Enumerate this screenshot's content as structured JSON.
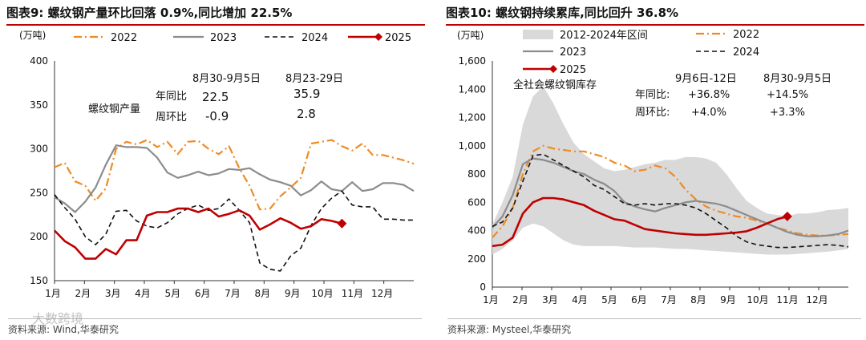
{
  "colors": {
    "s2022": "#f08a24",
    "s2023": "#8c8c8c",
    "s2024": "#111111",
    "s2025": "#c00000",
    "band": "#d9d9d9",
    "rule": "#c00000"
  },
  "left": {
    "title": "图表9:  螺纹钢产量环比回落 0.9%,同比增加 22.5%",
    "source": "资料来源: Wind,华泰研究",
    "chart_data": {
      "type": "line",
      "unit_label": "(万吨)",
      "ylim": [
        150,
        400
      ],
      "yticks": [
        "400",
        "350",
        "300",
        "250",
        "200",
        "150"
      ],
      "yvals": [
        400,
        350,
        300,
        250,
        200,
        150
      ],
      "months": [
        "1月",
        "2月",
        "3月",
        "4月",
        "5月",
        "6月",
        "7月",
        "8月",
        "9月",
        "10月",
        "11月",
        "12月"
      ],
      "legend": [
        "2022",
        "2023",
        "2024",
        "2025"
      ],
      "series": [
        {
          "name": "2022",
          "values": [
            279,
            284,
            263,
            258,
            241,
            255,
            300,
            308,
            305,
            310,
            302,
            308,
            294,
            308,
            309,
            300,
            294,
            303,
            278,
            258,
            231,
            232,
            246,
            256,
            267,
            306,
            308,
            310,
            303,
            298,
            306,
            293,
            293,
            290,
            287,
            283
          ]
        },
        {
          "name": "2023",
          "values": [
            245,
            238,
            228,
            240,
            256,
            282,
            304,
            302,
            302,
            301,
            290,
            273,
            267,
            270,
            274,
            270,
            272,
            277,
            276,
            278,
            271,
            265,
            262,
            258,
            247,
            253,
            263,
            254,
            252,
            262,
            252,
            254,
            261,
            261,
            259,
            252
          ]
        },
        {
          "name": "2024",
          "values": [
            248,
            233,
            220,
            200,
            191,
            203,
            229,
            230,
            218,
            212,
            210,
            216,
            226,
            232,
            236,
            230,
            232,
            243,
            230,
            216,
            170,
            163,
            161,
            178,
            187,
            213,
            232,
            244,
            252,
            236,
            234,
            234,
            220,
            220,
            219,
            219
          ]
        },
        {
          "name": "2025",
          "values": [
            207,
            195,
            188,
            175,
            175,
            186,
            180,
            196,
            196,
            224,
            228,
            228,
            232,
            232,
            228,
            232,
            223,
            226,
            230,
            224,
            208,
            214,
            221,
            216,
            209,
            212,
            220,
            218,
            215
          ]
        }
      ],
      "annotation": {
        "label": "螺纹钢产量",
        "col1": "8月30-9月5日",
        "col2": "8月23-29日",
        "row1_label": "年同比",
        "row2_label": "周环比",
        "yoy": [
          "22.5",
          "35.9"
        ],
        "wow": [
          "-0.9",
          "2.8"
        ]
      }
    }
  },
  "right": {
    "title": "图表10:  螺纹钢持续累库,同比回升 36.8%",
    "source": "资料来源: Mysteel,华泰研究",
    "chart_data": {
      "type": "line",
      "unit_label": "(万吨)",
      "ylim": [
        0,
        1600
      ],
      "yticks": [
        "1,600",
        "1,400",
        "1,200",
        "1,000",
        "800",
        "600",
        "400",
        "200",
        "0"
      ],
      "yvals": [
        1600,
        1400,
        1200,
        1000,
        800,
        600,
        400,
        200,
        0
      ],
      "months": [
        "1月",
        "2月",
        "3月",
        "4月",
        "5月",
        "6月",
        "7月",
        "8月",
        "9月",
        "10月",
        "11月",
        "12月"
      ],
      "legend": [
        "2012-2024年区间",
        "2022",
        "2023",
        "2024",
        "2025"
      ],
      "band_upper": [
        440,
        600,
        780,
        1150,
        1350,
        1420,
        1300,
        1150,
        1020,
        940,
        890,
        840,
        820,
        830,
        850,
        870,
        880,
        900,
        900,
        920,
        920,
        910,
        880,
        800,
        700,
        610,
        560,
        520,
        510,
        500,
        520,
        520,
        530,
        545,
        550,
        560
      ],
      "band_lower": [
        230,
        270,
        330,
        420,
        450,
        430,
        380,
        330,
        300,
        290,
        290,
        290,
        290,
        285,
        280,
        280,
        280,
        275,
        270,
        270,
        265,
        260,
        255,
        250,
        245,
        240,
        235,
        230,
        230,
        230,
        235,
        240,
        245,
        250,
        260,
        270
      ],
      "series": [
        {
          "name": "2022",
          "values": [
            350,
            430,
            560,
            800,
            960,
            1000,
            980,
            970,
            960,
            960,
            940,
            920,
            880,
            860,
            820,
            830,
            860,
            840,
            780,
            690,
            620,
            570,
            540,
            520,
            500,
            490,
            470,
            450,
            420,
            400,
            380,
            370,
            365,
            365,
            370,
            375
          ]
        },
        {
          "name": "2023",
          "values": [
            420,
            500,
            650,
            870,
            910,
            900,
            880,
            850,
            820,
            800,
            760,
            730,
            680,
            600,
            570,
            550,
            535,
            560,
            580,
            600,
            610,
            600,
            590,
            570,
            540,
            510,
            480,
            450,
            420,
            390,
            370,
            360,
            360,
            365,
            375,
            400
          ]
        },
        {
          "name": "2024",
          "values": [
            430,
            460,
            560,
            750,
            930,
            940,
            900,
            860,
            820,
            780,
            720,
            690,
            640,
            590,
            580,
            590,
            580,
            590,
            590,
            580,
            560,
            520,
            470,
            420,
            360,
            320,
            300,
            290,
            280,
            280,
            285,
            290,
            295,
            300,
            295,
            285
          ]
        },
        {
          "name": "2025",
          "values": [
            290,
            300,
            350,
            520,
            600,
            630,
            630,
            620,
            600,
            580,
            540,
            510,
            480,
            470,
            440,
            410,
            400,
            390,
            380,
            375,
            370,
            370,
            375,
            380,
            385,
            395,
            420,
            450,
            480,
            500
          ]
        }
      ],
      "annotation": {
        "label": "全社会螺纹钢库存",
        "col1": "9月6日-12日",
        "col2": "8月30-9月5日",
        "row1_label": "年同比:",
        "row2_label": "周环比:",
        "yoy": [
          "+36.8%",
          "+14.5%"
        ],
        "wow": [
          "+4.0%",
          "+3.3%"
        ]
      }
    }
  },
  "watermark": "大数跨境"
}
